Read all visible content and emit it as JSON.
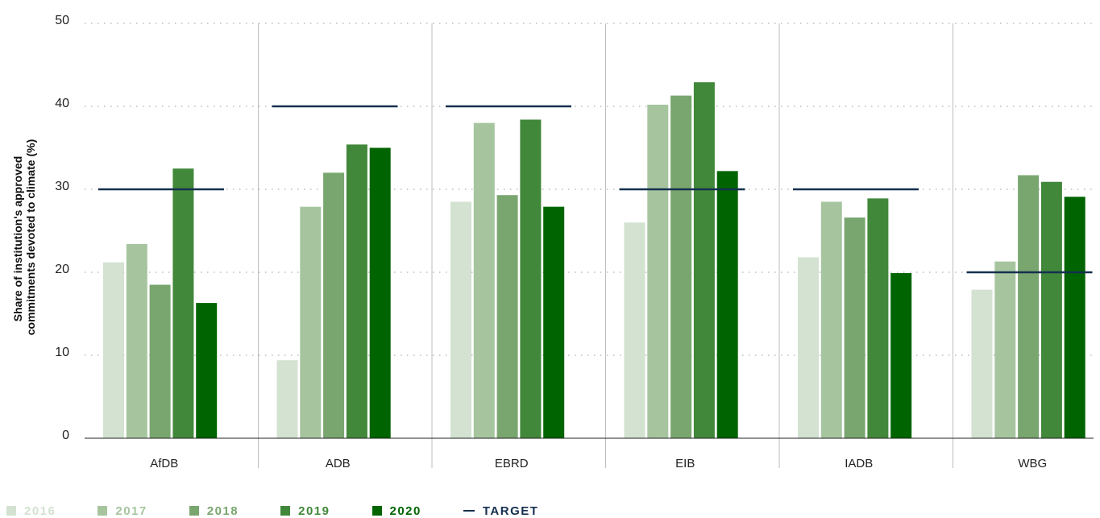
{
  "chart_data": {
    "type": "bar",
    "title": "",
    "xlabel": "",
    "ylabel": [
      "Share of institution's approved",
      "commitments devoted to climate (%)"
    ],
    "ylim": [
      0,
      50
    ],
    "yticks": [
      "0",
      "10",
      "20",
      "30",
      "40",
      "50"
    ],
    "grid": "dotted horizontal",
    "legend_position": "bottom",
    "categories": [
      "AfDB",
      "ADB",
      "EBRD",
      "EIB",
      "IADB",
      "WBG"
    ],
    "series": [
      {
        "name": "2016",
        "color": "#d3e2d1",
        "values": [
          21.2,
          9.4,
          28.5,
          26.0,
          21.8,
          17.9
        ]
      },
      {
        "name": "2017",
        "color": "#a6c59f",
        "values": [
          23.4,
          27.9,
          38.0,
          40.2,
          28.5,
          21.3
        ]
      },
      {
        "name": "2018",
        "color": "#79a66f",
        "values": [
          18.5,
          32.0,
          29.3,
          41.3,
          26.6,
          31.7
        ]
      },
      {
        "name": "2019",
        "color": "#41883a",
        "values": [
          32.5,
          35.4,
          38.4,
          42.9,
          28.9,
          30.9
        ]
      },
      {
        "name": "2020",
        "color": "#006400",
        "values": [
          16.3,
          35.0,
          27.9,
          32.2,
          19.9,
          29.1
        ]
      }
    ],
    "target": {
      "name": "TARGET",
      "color": "#15304f",
      "values": [
        30,
        40,
        40,
        30,
        30,
        20
      ]
    }
  }
}
